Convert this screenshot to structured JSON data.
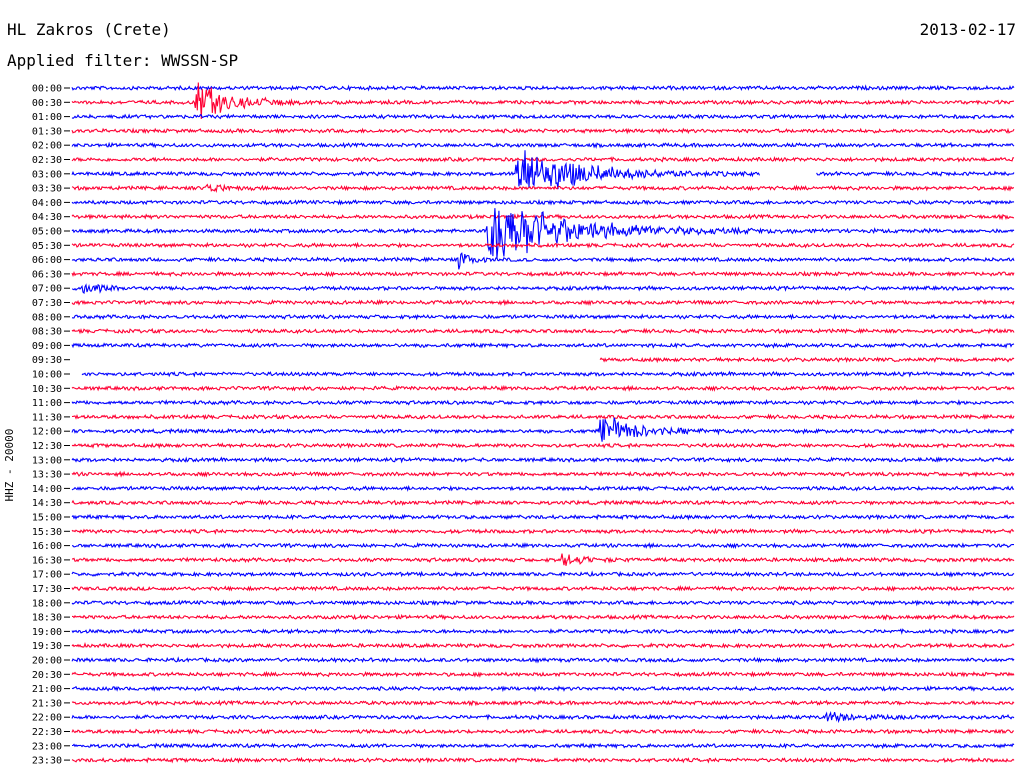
{
  "header": {
    "station": "HL Zakros (Crete)",
    "date": "2013-02-17",
    "filter": "Applied filter: WWSSN-SP"
  },
  "chart_data": {
    "type": "line",
    "title": "HL Zakros (Crete)",
    "ylabel": "HHZ - 20000",
    "row_interval_minutes": 30,
    "tick_labels": [
      "00:00",
      "00:30",
      "01:00",
      "01:30",
      "02:00",
      "02:30",
      "03:00",
      "03:30",
      "04:00",
      "04:30",
      "05:00",
      "05:30",
      "06:00",
      "06:30",
      "07:00",
      "07:30",
      "08:00",
      "08:30",
      "09:00",
      "09:30",
      "10:00",
      "10:30",
      "11:00",
      "11:30",
      "12:00",
      "12:30",
      "13:00",
      "13:30",
      "14:00",
      "14:30",
      "15:00",
      "15:30",
      "16:00",
      "16:30",
      "17:00",
      "17:30",
      "18:00",
      "18:30",
      "19:00",
      "19:30",
      "20:00",
      "20:30",
      "21:00",
      "21:30",
      "22:00",
      "22:30",
      "23:00",
      "23:30"
    ],
    "colors": [
      "#0000ff",
      "#ff0033"
    ],
    "events": [
      {
        "row": 1,
        "pos": 0.13,
        "amp": 28,
        "len": 0.05
      },
      {
        "row": 6,
        "pos": 0.47,
        "amp": 38,
        "len": 0.09
      },
      {
        "row": 7,
        "pos": 0.14,
        "amp": 9,
        "len": 0.02
      },
      {
        "row": 10,
        "pos": 0.44,
        "amp": 46,
        "len": 0.12
      },
      {
        "row": 12,
        "pos": 0.41,
        "amp": 10,
        "len": 0.02
      },
      {
        "row": 14,
        "pos": 0.01,
        "amp": 7,
        "len": 0.03
      },
      {
        "row": 24,
        "pos": 0.56,
        "amp": 22,
        "len": 0.05
      },
      {
        "row": 33,
        "pos": 0.52,
        "amp": 9,
        "len": 0.03
      },
      {
        "row": 44,
        "pos": 0.8,
        "amp": 6,
        "len": 0.05
      }
    ],
    "gaps": [
      {
        "row": 6,
        "start": 0.73,
        "end": 0.79
      },
      {
        "row": 19,
        "start": 0.0,
        "end": 0.56
      },
      {
        "row": 20,
        "start": 0.0,
        "end": 0.01
      }
    ]
  }
}
